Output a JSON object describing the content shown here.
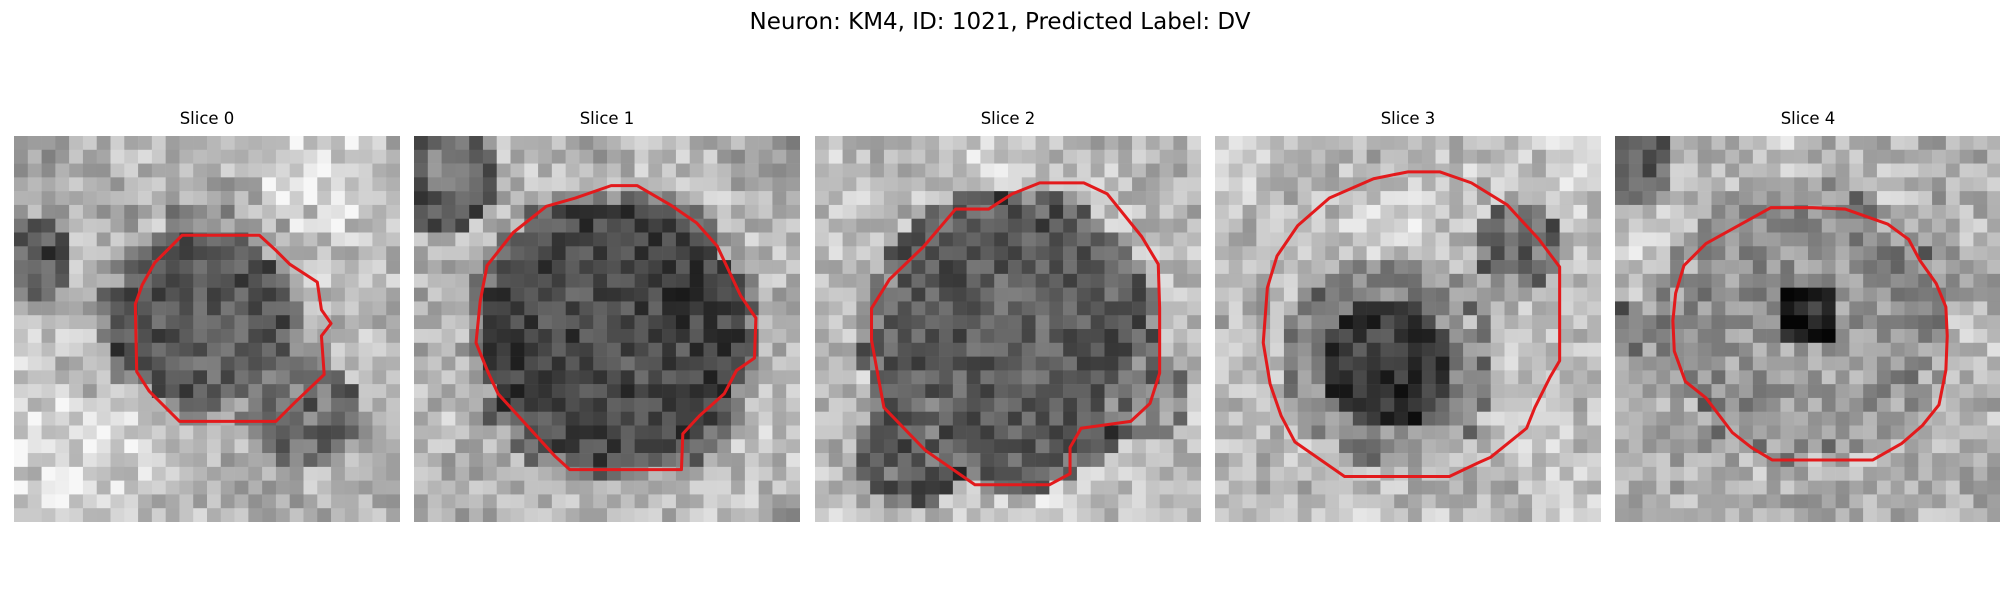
{
  "figure": {
    "title": "Neuron: KM4, ID: 1021, Predicted Label: DV"
  },
  "panels": [
    {
      "title": "Slice 0"
    },
    {
      "title": "Slice 1"
    },
    {
      "title": "Slice 2"
    },
    {
      "title": "Slice 3"
    },
    {
      "title": "Slice 4"
    }
  ],
  "contour_color": "#e31a1c",
  "colormap": "grayscale"
}
